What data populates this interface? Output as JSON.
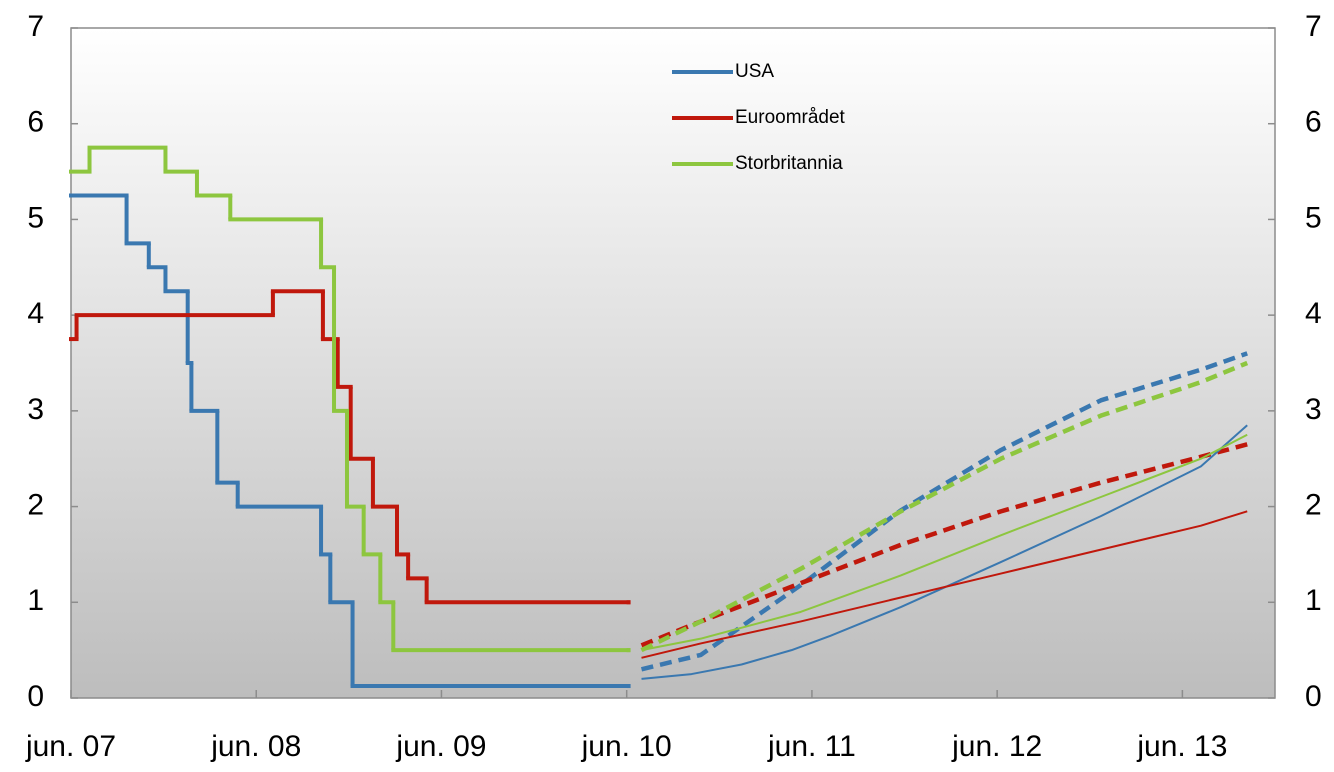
{
  "chart_data": {
    "type": "line",
    "xlim": [
      2007.5,
      2014.0
    ],
    "xticks": [
      {
        "value": 2007.5,
        "label": "jun. 07"
      },
      {
        "value": 2008.5,
        "label": "jun. 08"
      },
      {
        "value": 2009.5,
        "label": "jun. 09"
      },
      {
        "value": 2010.5,
        "label": "jun. 10"
      },
      {
        "value": 2011.5,
        "label": "jun. 11"
      },
      {
        "value": 2012.5,
        "label": "jun. 12"
      },
      {
        "value": 2013.5,
        "label": "jun. 13"
      }
    ],
    "ylim": [
      0,
      7
    ],
    "yticks": [
      0,
      1,
      2,
      3,
      4,
      5,
      6,
      7
    ],
    "y2lim": [
      0,
      7
    ],
    "y2ticks": [
      0,
      1,
      2,
      3,
      4,
      5,
      6,
      7
    ],
    "legend": "top-center",
    "series": [
      {
        "name": "USA",
        "color": "#3a78b0",
        "style": "step",
        "x": [
          2007.5,
          2007.8,
          2007.92,
          2008.01,
          2008.13,
          2008.15,
          2008.29,
          2008.4,
          2008.85,
          2008.9,
          2009.02,
          2010.51
        ],
        "values": [
          5.25,
          4.75,
          4.5,
          4.25,
          3.5,
          3.0,
          2.25,
          2.0,
          1.5,
          1.0,
          0.125,
          0.125
        ]
      },
      {
        "name": "Euroområdet",
        "color": "#c0180c",
        "style": "step",
        "x": [
          2007.5,
          2007.53,
          2008.59,
          2008.86,
          2008.94,
          2009.01,
          2009.13,
          2009.26,
          2009.32,
          2009.42,
          2010.51
        ],
        "values": [
          3.75,
          4.0,
          4.25,
          3.75,
          3.25,
          2.5,
          2.0,
          1.5,
          1.25,
          1.0,
          1.0
        ]
      },
      {
        "name": "Storbritannia",
        "color": "#8dc63f",
        "style": "step",
        "x": [
          2007.5,
          2007.6,
          2008.01,
          2008.18,
          2008.36,
          2008.85,
          2008.92,
          2008.99,
          2009.08,
          2009.17,
          2009.24,
          2010.51
        ],
        "values": [
          5.5,
          5.75,
          5.5,
          5.25,
          5.0,
          4.5,
          3.0,
          2.0,
          1.5,
          1.0,
          0.5,
          0.5
        ]
      },
      {
        "color": "#3a78b0",
        "style": "dashed",
        "x": [
          2010.58,
          2010.9,
          2011.44,
          2011.98,
          2012.52,
          2013.06,
          2013.6,
          2013.85
        ],
        "values": [
          0.3,
          0.45,
          1.18,
          1.96,
          2.59,
          3.11,
          3.43,
          3.6
        ]
      },
      {
        "color": "#c0180c",
        "style": "dashed",
        "x": [
          2010.58,
          2010.9,
          2011.44,
          2011.98,
          2012.52,
          2013.06,
          2013.6,
          2013.85
        ],
        "values": [
          0.55,
          0.8,
          1.2,
          1.6,
          1.95,
          2.25,
          2.52,
          2.65
        ]
      },
      {
        "color": "#8dc63f",
        "style": "dashed",
        "x": [
          2010.58,
          2010.9,
          2011.44,
          2011.98,
          2012.52,
          2013.06,
          2013.6,
          2013.85
        ],
        "values": [
          0.5,
          0.8,
          1.35,
          1.95,
          2.5,
          2.95,
          3.3,
          3.5
        ]
      },
      {
        "color": "#3a78b0",
        "style": "thin",
        "x": [
          2010.58,
          2010.85,
          2011.12,
          2011.39,
          2011.6,
          2011.98,
          2012.52,
          2013.06,
          2013.6,
          2013.85
        ],
        "values": [
          0.2,
          0.25,
          0.35,
          0.5,
          0.65,
          0.95,
          1.42,
          1.9,
          2.42,
          2.85
        ]
      },
      {
        "color": "#c0180c",
        "style": "thin",
        "x": [
          2010.58,
          2010.9,
          2011.44,
          2011.98,
          2012.52,
          2013.06,
          2013.6,
          2013.85
        ],
        "values": [
          0.42,
          0.57,
          0.8,
          1.05,
          1.3,
          1.55,
          1.8,
          1.95
        ]
      },
      {
        "color": "#8dc63f",
        "style": "thin",
        "x": [
          2010.58,
          2010.9,
          2011.44,
          2011.98,
          2012.52,
          2013.06,
          2013.6,
          2013.85
        ],
        "values": [
          0.5,
          0.62,
          0.9,
          1.28,
          1.7,
          2.1,
          2.5,
          2.75
        ]
      }
    ]
  }
}
